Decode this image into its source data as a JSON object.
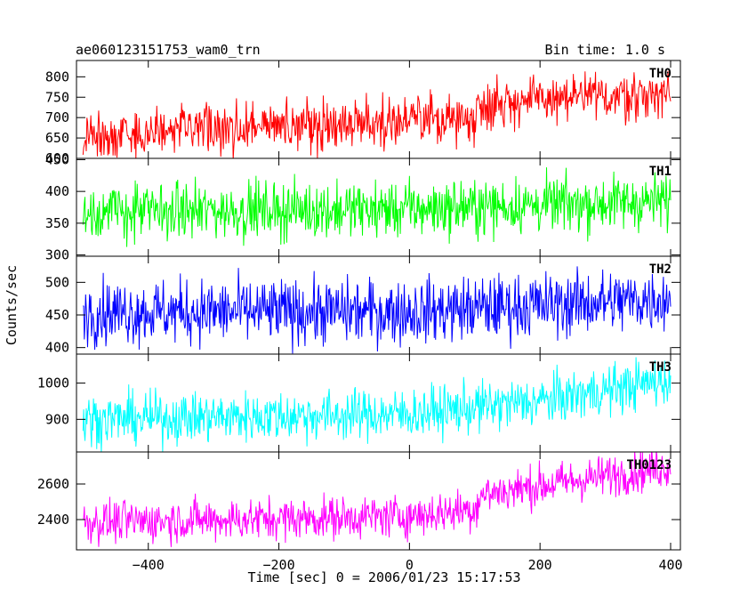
{
  "chart_data": {
    "type": "line",
    "title": "ae060123151753_wam0_trn",
    "bin_time_label": "Bin time: 1.0 s",
    "xlabel": "Time [sec] 0 = 2006/01/23 15:17:53",
    "ylabel": "Counts/sec",
    "xlim": [
      -510,
      415
    ],
    "x_ticks": [
      -400,
      -200,
      0,
      200,
      400
    ],
    "x_tick_labels": [
      "−400",
      "−200",
      "0",
      "200",
      "400"
    ],
    "x_sampling": {
      "start": -500,
      "end": 400,
      "step": 1
    },
    "panels": [
      {
        "name": "TH0",
        "color": "#ff0000",
        "ylim": [
          600,
          840
        ],
        "y_ticks": [
          600,
          650,
          700,
          750,
          800
        ],
        "trend": [
          [
            -500,
            655
          ],
          [
            -200,
            680
          ],
          [
            100,
            700
          ],
          [
            110,
            735
          ],
          [
            400,
            760
          ]
        ],
        "noise": 30
      },
      {
        "name": "TH1",
        "color": "#00ff00",
        "ylim": [
          298,
          452
        ],
        "y_ticks": [
          300,
          350,
          400,
          450
        ],
        "trend": [
          [
            -500,
            368
          ],
          [
            0,
            372
          ],
          [
            400,
            385
          ]
        ],
        "noise": 22
      },
      {
        "name": "TH2",
        "color": "#0000ff",
        "ylim": [
          390,
          540
        ],
        "y_ticks": [
          400,
          450,
          500
        ],
        "trend": [
          [
            -500,
            455
          ],
          [
            0,
            455
          ],
          [
            400,
            475
          ]
        ],
        "noise": 25
      },
      {
        "name": "TH3",
        "color": "#00ffff",
        "ylim": [
          810,
          1080
        ],
        "y_ticks": [
          900,
          1000
        ],
        "trend": [
          [
            -500,
            900
          ],
          [
            0,
            915
          ],
          [
            200,
            950
          ],
          [
            400,
            1010
          ]
        ],
        "noise": 35
      },
      {
        "name": "TH0123",
        "color": "#ff00ff",
        "ylim": [
          2230,
          2780
        ],
        "y_ticks": [
          2400,
          2600
        ],
        "trend": [
          [
            -500,
            2385
          ],
          [
            0,
            2420
          ],
          [
            100,
            2460
          ],
          [
            110,
            2540
          ],
          [
            400,
            2700
          ]
        ],
        "noise": 60
      }
    ]
  }
}
